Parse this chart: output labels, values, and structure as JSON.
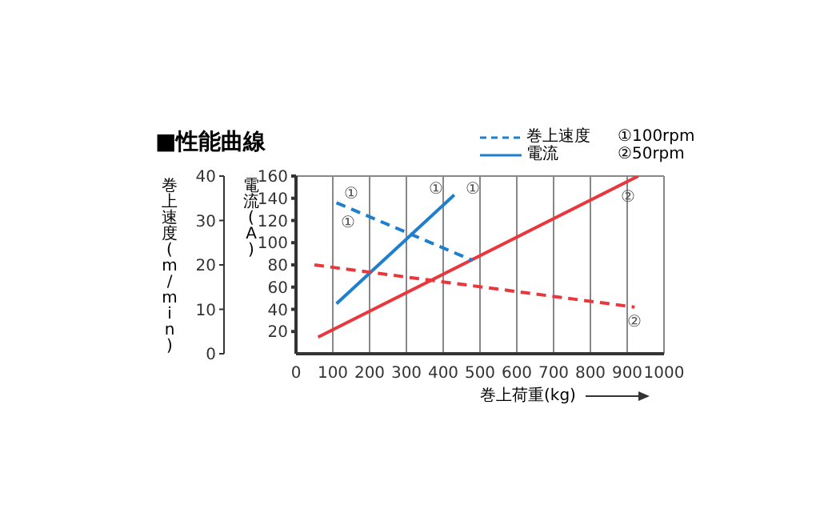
{
  "chart_data": {
    "type": "line",
    "title": "■性能曲線",
    "xlabel": "巻上荷重(kg)",
    "ylabel": "電流(A)",
    "y2label": "巻上速度(m/min)",
    "xlim": [
      0,
      1000
    ],
    "xticks": [
      0,
      100,
      200,
      300,
      400,
      500,
      600,
      700,
      800,
      900,
      1000
    ],
    "ylim": [
      0,
      160
    ],
    "yticks": [
      20,
      40,
      60,
      80,
      100,
      120,
      140,
      160
    ],
    "y2lim": [
      0,
      40
    ],
    "y2ticks": [
      0,
      10,
      20,
      30,
      40
    ],
    "grid": true,
    "marker": "none",
    "series": [
      {
        "color": "#1f7fcf",
        "x": [
          110,
          430
        ],
        "values": [
          45,
          143
        ],
        "line_style": "solid"
      },
      {
        "color": "#e8383d",
        "x": [
          60,
          930
        ],
        "values": [
          15,
          160
        ],
        "line_style": "solid"
      },
      {
        "color": "#1f7fcf",
        "x": [
          110,
          480
        ],
        "values": [
          34,
          21
        ],
        "line_style": "dashed",
        "axis": "y2"
      },
      {
        "color": "#e8383d",
        "x": [
          50,
          920
        ],
        "values": [
          20,
          10.5
        ],
        "line_style": "dashed",
        "axis": "y2"
      }
    ],
    "annotations": [
      "巻上速度",
      "電流",
      "①100rpm",
      "②50rpm",
      "①",
      "①",
      "①",
      "①",
      "②",
      "②"
    ]
  }
}
